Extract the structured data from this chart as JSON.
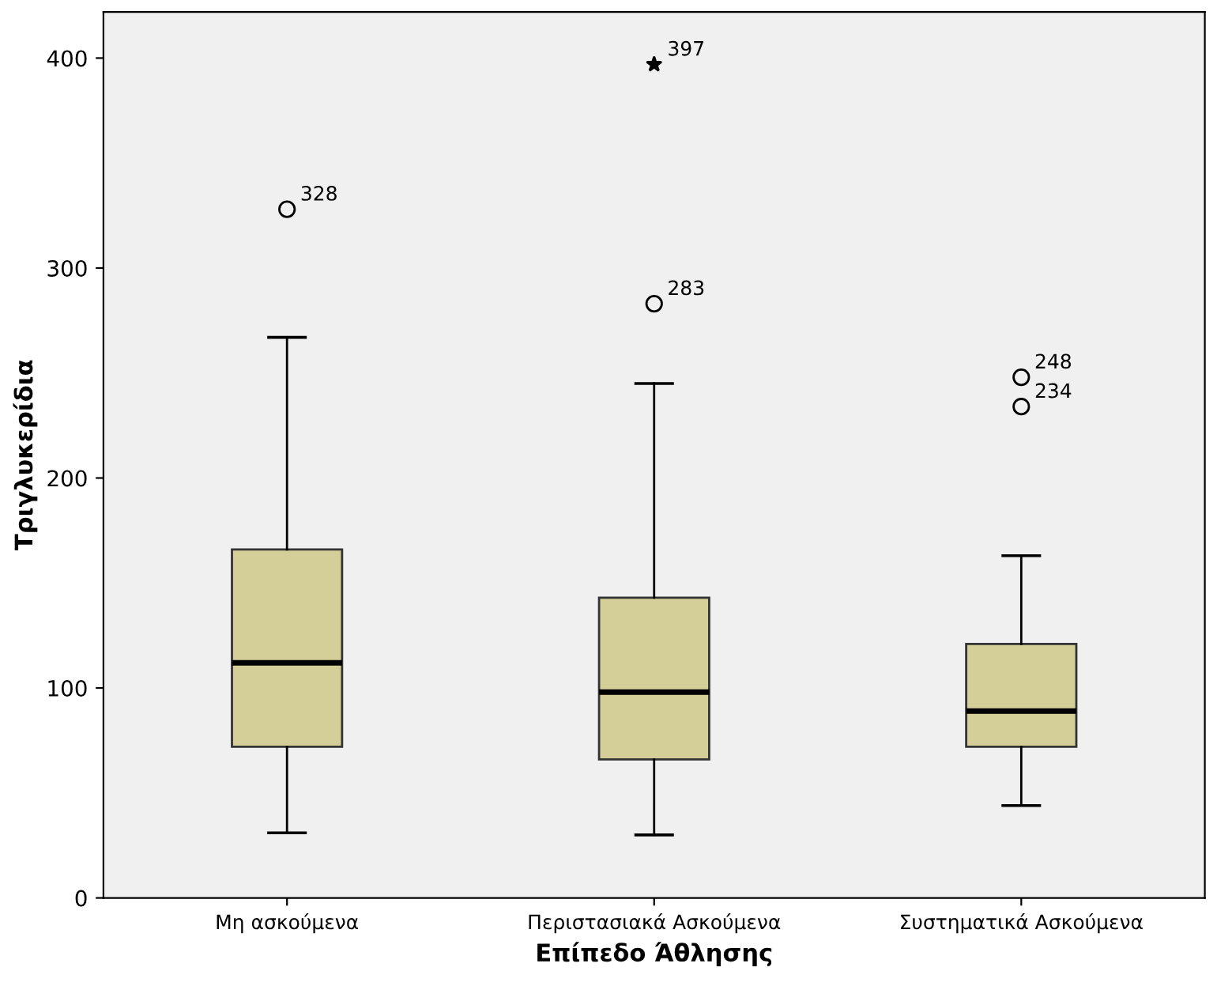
{
  "chart_data": {
    "type": "box",
    "xlabel": "Επίπεδο Άθλησης",
    "ylabel": "Τριγλυκερίδια",
    "categories": [
      "Μη ασκούμενα",
      "Περιστασιακά Ασκούμενα",
      "Συστηματικά Ασκούμενα"
    ],
    "color": "#d4cf98",
    "boxes": [
      {
        "low": 31,
        "q1": 72,
        "median": 112,
        "q3": 166,
        "high": 267,
        "outliers": [
          328
        ]
      },
      {
        "low": 30,
        "q1": 66,
        "median": 98,
        "q3": 143,
        "high": 245,
        "outliers": [
          283,
          397
        ]
      },
      {
        "low": 44,
        "q1": 72,
        "median": 89,
        "q3": 121,
        "high": 163,
        "outliers": [
          234,
          248
        ]
      }
    ],
    "ylim": [
      0,
      422
    ],
    "yticks": [
      0,
      100,
      200,
      300,
      400
    ],
    "grid": false,
    "annotations": [
      "328",
      "283",
      "397",
      "234",
      "248"
    ]
  }
}
